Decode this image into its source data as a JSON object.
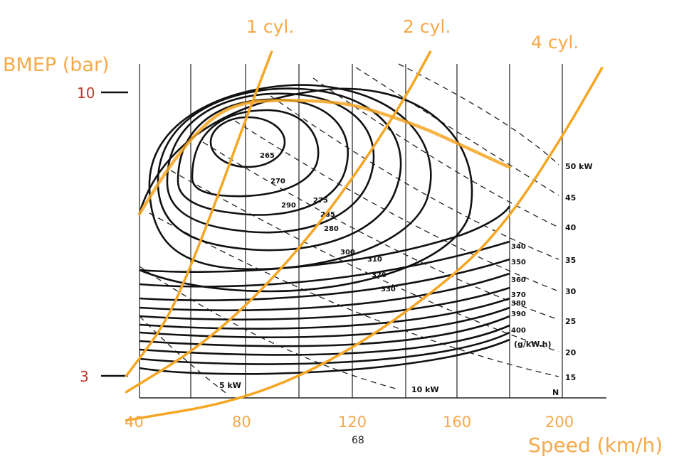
{
  "chart_data": {
    "type": "line",
    "title": "",
    "xlabel": "Speed (km/h)",
    "ylabel": "BMEP (bar)",
    "x_ticks": [
      40,
      80,
      120,
      160,
      200
    ],
    "y_ticks": [
      3,
      10
    ],
    "xlim": [
      40,
      200
    ],
    "ylim": [
      2.5,
      10.5
    ],
    "series": [
      {
        "name": "1 cyl.",
        "x": [
          35,
          50,
          60,
          70,
          80,
          90
        ],
        "y": [
          3.0,
          4.3,
          5.8,
          7.5,
          9.3,
          11.0
        ]
      },
      {
        "name": "2 cyl.",
        "x": [
          35,
          60,
          80,
          100,
          120,
          140,
          150
        ],
        "y": [
          2.6,
          3.6,
          4.7,
          6.1,
          7.8,
          9.8,
          11.0
        ]
      },
      {
        "name": "4 cyl.",
        "x": [
          35,
          80,
          120,
          160,
          180,
          200,
          215
        ],
        "y": [
          1.9,
          2.4,
          3.6,
          5.5,
          6.9,
          8.9,
          10.6
        ]
      },
      {
        "name": "",
        "x": [
          40,
          50,
          60,
          70,
          80,
          90,
          100,
          110,
          120,
          130,
          140,
          150,
          160,
          170,
          180
        ],
        "y": [
          7.0,
          8.05,
          8.9,
          9.5,
          9.75,
          9.8,
          9.8,
          9.78,
          9.7,
          9.52,
          9.3,
          9.05,
          8.75,
          8.45,
          8.15
        ]
      }
    ],
    "bsfc_labels": [
      "265",
      "270",
      "275",
      "280",
      "285",
      "290",
      "300",
      "310",
      "320",
      "330",
      "340",
      "350",
      "360",
      "370",
      "380",
      "390",
      "400"
    ],
    "bsfc_unit": "(g/kW.h)",
    "power_labels": [
      "5 kW",
      "10 kW",
      "15",
      "20",
      "25",
      "30",
      "35",
      "40",
      "45",
      "50 kW"
    ],
    "n_label": "N",
    "colors": {
      "overlay": "#f5a623",
      "label_orange": "#f5a94a",
      "label_red": "#c0392b",
      "ink": "#111111"
    }
  },
  "page_number": "68"
}
